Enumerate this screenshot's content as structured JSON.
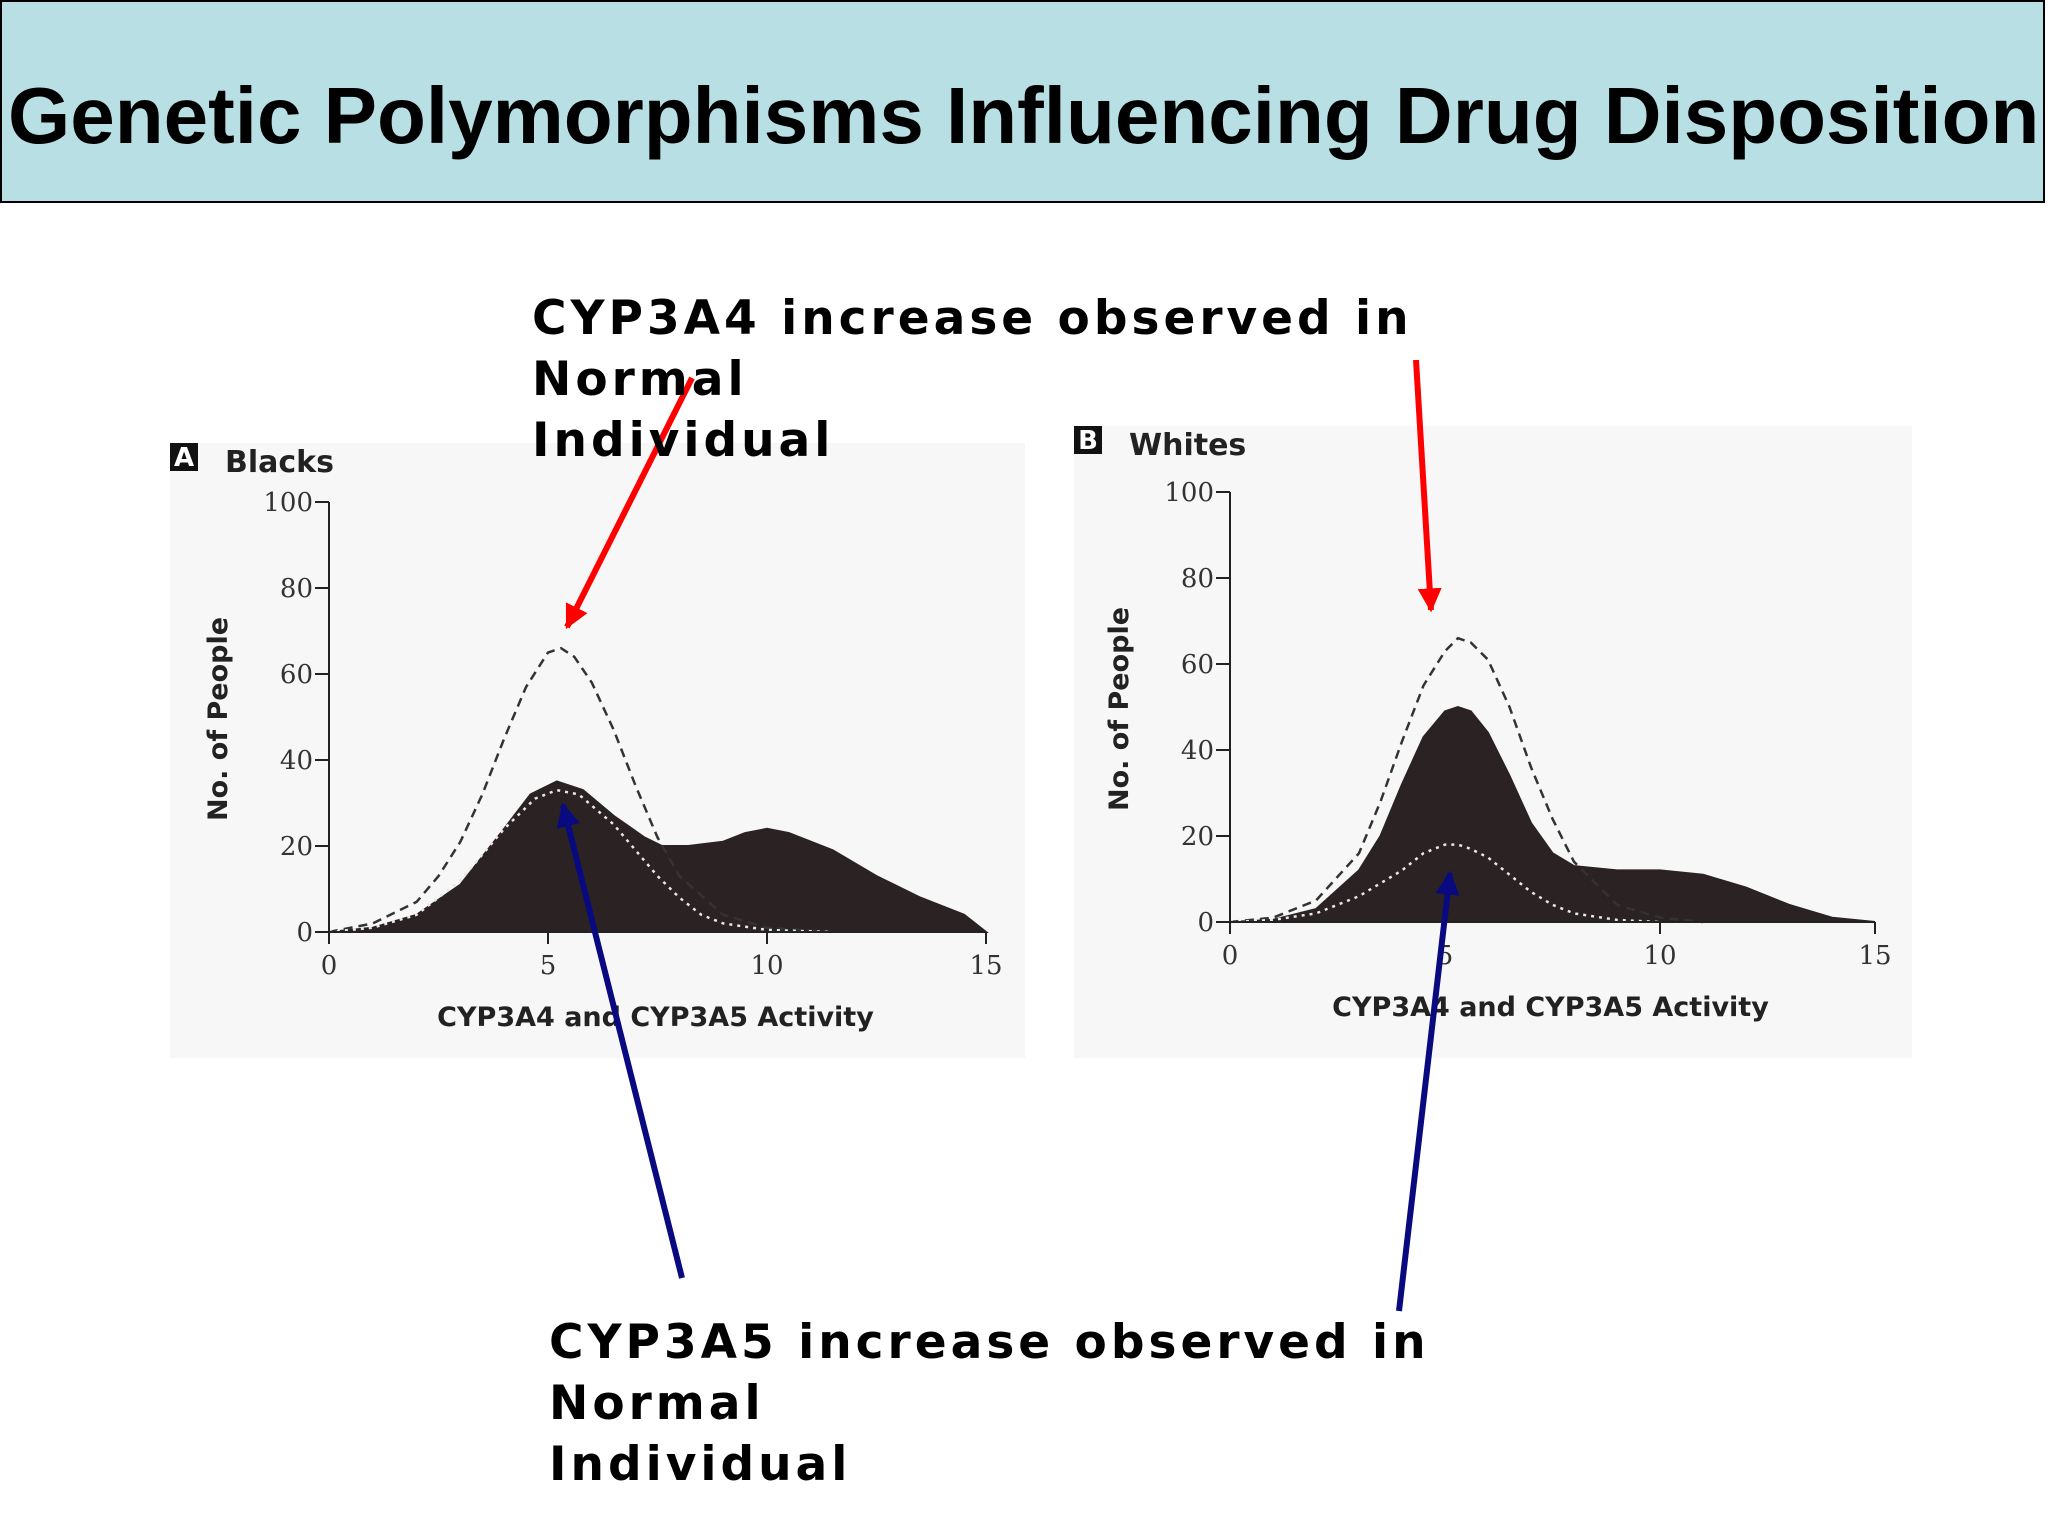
{
  "slide": {
    "title": "Genetic Polymorphisms Influencing Drug Disposition",
    "callouts": {
      "cyp3a4": "CYP3A4 increase observed in Normal\nIndividual",
      "cyp3a5": "CYP3A5 increase observed in Normal\nIndividual"
    }
  },
  "colors": {
    "title_bar": "#b8e0e4",
    "cyp3a4_arrow": "#ff0000",
    "cyp3a5_arrow": "#0a0a80",
    "fill_curve": "#2a2223"
  },
  "chart_data": [
    {
      "type": "area",
      "panel_letter": "A",
      "title": "Blacks",
      "xlabel": "CYP3A4 and CYP3A5 Activity",
      "ylabel": "No. of People",
      "xlim": [
        0,
        15
      ],
      "ylim": [
        0,
        100
      ],
      "x_ticks": [
        0,
        5,
        10,
        15
      ],
      "y_ticks": [
        0,
        20,
        40,
        60,
        80,
        100
      ],
      "grid": false,
      "series": [
        {
          "style": "filled",
          "x": [
            0,
            1,
            2,
            3,
            4,
            4.6,
            5.2,
            5.8,
            6.5,
            7.2,
            7.6,
            8.2,
            9,
            9.5,
            10,
            10.5,
            11.5,
            12.5,
            13.5,
            14.5,
            15
          ],
          "y": [
            0,
            1,
            4,
            11,
            24,
            32,
            35,
            33,
            27,
            22,
            20,
            20,
            21,
            23,
            24,
            23,
            19,
            13,
            8,
            4,
            0
          ]
        },
        {
          "style": "dashed",
          "x": [
            0,
            1,
            2,
            2.5,
            3,
            3.5,
            4,
            4.5,
            5,
            5.3,
            5.6,
            6,
            6.5,
            7,
            7.5,
            8,
            9,
            10,
            11.5
          ],
          "y": [
            0,
            2,
            7,
            13,
            21,
            32,
            45,
            57,
            65,
            66,
            64,
            58,
            47,
            34,
            22,
            13,
            4,
            1,
            0
          ]
        },
        {
          "style": "dotted",
          "x": [
            0,
            1,
            2,
            3,
            4,
            4.7,
            5.2,
            5.7,
            6.5,
            7,
            7.5,
            8,
            8.5,
            9,
            10,
            11.5
          ],
          "y": [
            0,
            1,
            4,
            12,
            24,
            31,
            33,
            32,
            25,
            19,
            13,
            8,
            4,
            2,
            0.5,
            0
          ]
        }
      ]
    },
    {
      "type": "area",
      "panel_letter": "B",
      "title": "Whites",
      "xlabel": "CYP3A4 and CYP3A5 Activity",
      "ylabel": "No. of People",
      "xlim": [
        0,
        15
      ],
      "ylim": [
        0,
        100
      ],
      "x_ticks": [
        0,
        5,
        10,
        15
      ],
      "y_ticks": [
        0,
        20,
        40,
        60,
        80,
        100
      ],
      "grid": false,
      "series": [
        {
          "style": "filled",
          "x": [
            0,
            1,
            2,
            3,
            3.5,
            4,
            4.5,
            5,
            5.3,
            5.6,
            6,
            6.5,
            7,
            7.5,
            8,
            9,
            10,
            11,
            12,
            13,
            14,
            15
          ],
          "y": [
            0,
            0.5,
            3,
            12,
            20,
            32,
            43,
            49,
            50,
            49,
            44,
            34,
            23,
            16,
            13,
            12,
            12,
            11,
            8,
            4,
            1,
            0
          ]
        },
        {
          "style": "dashed",
          "x": [
            0,
            1,
            2,
            3,
            3.5,
            4,
            4.5,
            5,
            5.3,
            5.6,
            6,
            6.5,
            7,
            7.5,
            8,
            9,
            10,
            11
          ],
          "y": [
            0,
            1,
            5,
            16,
            28,
            42,
            55,
            63,
            66,
            65,
            61,
            50,
            36,
            24,
            14,
            4,
            1,
            0
          ]
        },
        {
          "style": "dotted",
          "x": [
            0,
            1,
            2,
            3,
            4,
            4.5,
            5,
            5.3,
            5.6,
            6,
            6.5,
            7,
            7.5,
            8,
            9,
            10
          ],
          "y": [
            0,
            0.5,
            2,
            6,
            12,
            16,
            18,
            18,
            17,
            15,
            11,
            7,
            4,
            2,
            0.5,
            0
          ]
        }
      ]
    }
  ]
}
